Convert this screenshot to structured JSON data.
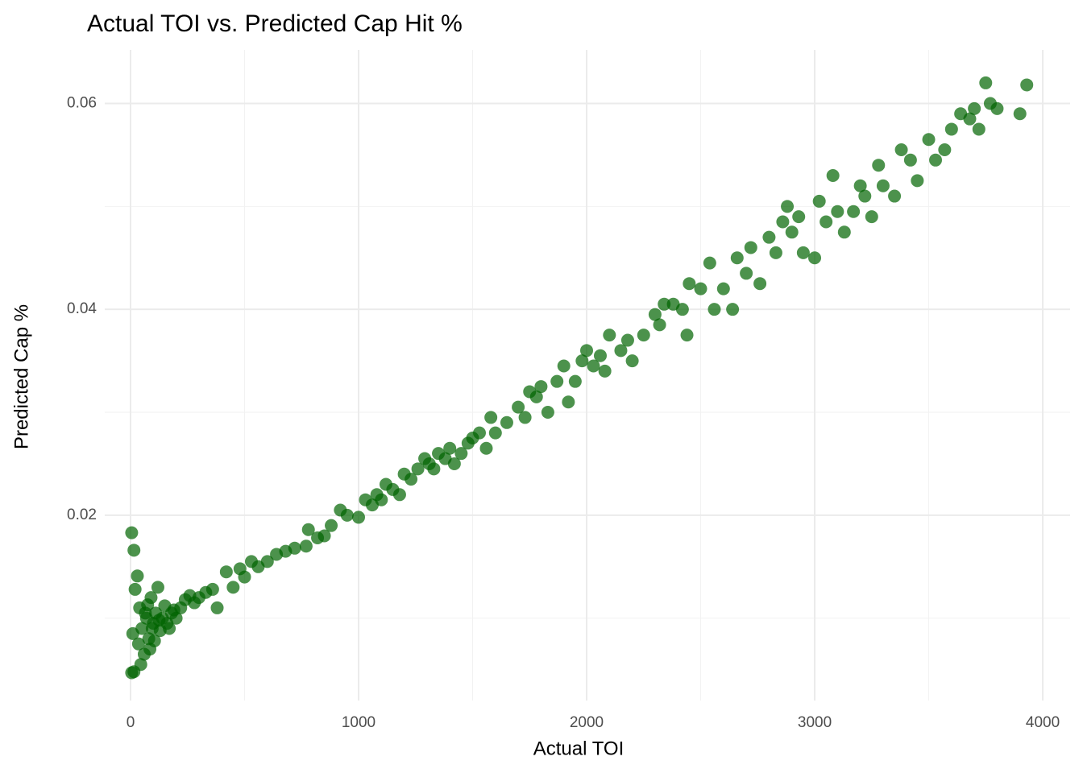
{
  "chart_data": {
    "type": "scatter",
    "title": "Actual TOI vs. Predicted Cap Hit %",
    "x_label": "Actual TOI",
    "y_label": "Predicted Cap %",
    "color": "#006400",
    "grid": true,
    "xlim": [
      -113,
      4120
    ],
    "ylim": [
      0.002,
      0.0652
    ],
    "xticks": [
      0,
      1000,
      2000,
      3000,
      4000
    ],
    "yticks": [
      0.02,
      0.04,
      0.06
    ],
    "xminor": [
      500,
      1500,
      2500,
      3500
    ],
    "yminor": [
      0.01,
      0.03,
      0.05
    ],
    "x": [
      5,
      15,
      30,
      20,
      10,
      5,
      15,
      40,
      50,
      60,
      70,
      80,
      90,
      100,
      110,
      120,
      130,
      140,
      150,
      160,
      180,
      200,
      220,
      240,
      260,
      280,
      300,
      330,
      380,
      360,
      35,
      45,
      65,
      85,
      95,
      105,
      75,
      125,
      170,
      190,
      420,
      450,
      480,
      500,
      530,
      560,
      600,
      640,
      680,
      720,
      770,
      780,
      820,
      850,
      880,
      920,
      950,
      1000,
      1030,
      1060,
      1080,
      1100,
      1120,
      1150,
      1180,
      1200,
      1230,
      1260,
      1290,
      1310,
      1330,
      1350,
      1380,
      1400,
      1420,
      1450,
      1480,
      1500,
      1530,
      1560,
      1580,
      1600,
      1650,
      1700,
      1730,
      1750,
      1780,
      1800,
      1830,
      1870,
      1900,
      1920,
      1950,
      1980,
      2000,
      2030,
      2060,
      2080,
      2100,
      2150,
      2180,
      2200,
      2250,
      2300,
      2320,
      2340,
      2380,
      2420,
      2440,
      2450,
      2500,
      2540,
      2560,
      2600,
      2640,
      2660,
      2700,
      2720,
      2760,
      2800,
      2830,
      2860,
      2880,
      2900,
      2930,
      2950,
      3000,
      3020,
      3050,
      3080,
      3100,
      3130,
      3170,
      3200,
      3220,
      3250,
      3280,
      3300,
      3350,
      3380,
      3420,
      3450,
      3500,
      3530,
      3570,
      3600,
      3640,
      3680,
      3700,
      3720,
      3750,
      3770,
      3800,
      3900,
      3930
    ],
    "y": [
      0.0183,
      0.0166,
      0.0141,
      0.0128,
      0.0085,
      0.0047,
      0.0048,
      0.011,
      0.009,
      0.0065,
      0.01,
      0.008,
      0.012,
      0.0095,
      0.0105,
      0.013,
      0.0088,
      0.01,
      0.0112,
      0.0095,
      0.0105,
      0.01,
      0.011,
      0.0118,
      0.0122,
      0.0115,
      0.012,
      0.0125,
      0.011,
      0.0128,
      0.0075,
      0.0055,
      0.0105,
      0.007,
      0.009,
      0.0078,
      0.0113,
      0.0098,
      0.009,
      0.0108,
      0.0145,
      0.013,
      0.0148,
      0.014,
      0.0155,
      0.015,
      0.0155,
      0.0162,
      0.0165,
      0.0168,
      0.017,
      0.0186,
      0.0178,
      0.018,
      0.019,
      0.0205,
      0.02,
      0.0198,
      0.0215,
      0.021,
      0.022,
      0.0215,
      0.023,
      0.0225,
      0.022,
      0.024,
      0.0235,
      0.0245,
      0.0255,
      0.025,
      0.0245,
      0.026,
      0.0255,
      0.0265,
      0.025,
      0.026,
      0.027,
      0.0275,
      0.028,
      0.0265,
      0.0295,
      0.028,
      0.029,
      0.0305,
      0.0295,
      0.032,
      0.0315,
      0.0325,
      0.03,
      0.033,
      0.0345,
      0.031,
      0.033,
      0.035,
      0.036,
      0.0345,
      0.0355,
      0.034,
      0.0375,
      0.036,
      0.037,
      0.035,
      0.0375,
      0.0395,
      0.0385,
      0.0405,
      0.0405,
      0.04,
      0.0375,
      0.0425,
      0.042,
      0.0445,
      0.04,
      0.042,
      0.04,
      0.045,
      0.0435,
      0.046,
      0.0425,
      0.047,
      0.0455,
      0.0485,
      0.05,
      0.0475,
      0.049,
      0.0455,
      0.045,
      0.0505,
      0.0485,
      0.053,
      0.0495,
      0.0475,
      0.0495,
      0.052,
      0.051,
      0.049,
      0.054,
      0.052,
      0.051,
      0.0555,
      0.0545,
      0.0525,
      0.0565,
      0.0545,
      0.0555,
      0.0575,
      0.059,
      0.0585,
      0.0595,
      0.0575,
      0.062,
      0.06,
      0.0595,
      0.059,
      0.0618
    ]
  }
}
